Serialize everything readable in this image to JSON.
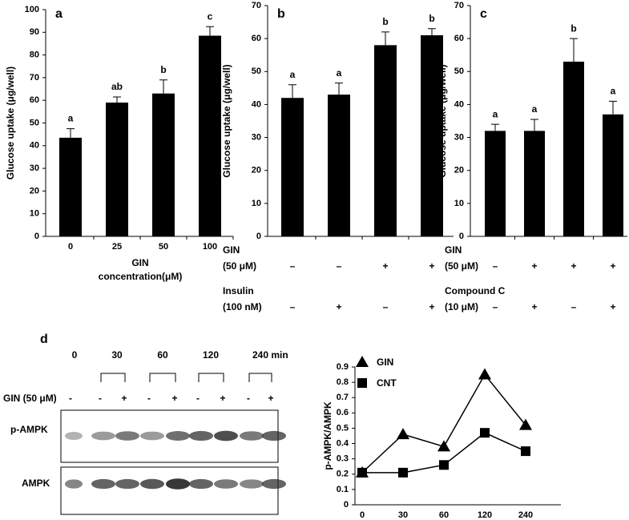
{
  "chart_data": [
    {
      "type": "bar",
      "panel": "a",
      "ylabel": "Glucose uptake (μg/well)",
      "xlabel": [
        "GIN",
        "concentration(μM)"
      ],
      "categories": [
        "0",
        "25",
        "50",
        "100"
      ],
      "values": [
        43.5,
        59,
        63,
        88.5
      ],
      "errors": [
        4,
        2.5,
        6,
        4
      ],
      "annotations": [
        "a",
        "ab",
        "b",
        "c"
      ],
      "color": "#000000",
      "ylim": [
        0,
        100
      ],
      "yticks": [
        0,
        10,
        20,
        30,
        40,
        50,
        60,
        70,
        80,
        90,
        100
      ]
    },
    {
      "type": "bar",
      "panel": "b",
      "ylabel": "Glucose uptake (μg/well)",
      "values": [
        42,
        43,
        58,
        61
      ],
      "errors": [
        4,
        3.5,
        4,
        2
      ],
      "annotations": [
        "a",
        "a",
        "b",
        "b"
      ],
      "color": "#000000",
      "conditions": [
        {
          "label": [
            "GIN",
            "(50 μM)"
          ],
          "signs": [
            "–",
            "–",
            "+",
            "+"
          ]
        },
        {
          "label": [
            "Insulin",
            "(100 nM)"
          ],
          "signs": [
            "–",
            "+",
            "–",
            "+"
          ]
        }
      ],
      "ylim": [
        0,
        70
      ],
      "yticks": [
        0,
        10,
        20,
        30,
        40,
        50,
        60,
        70
      ]
    },
    {
      "type": "bar",
      "panel": "c",
      "ylabel": "Glucose uptake (μg/well)",
      "values": [
        32,
        32,
        53,
        37
      ],
      "errors": [
        2,
        3.5,
        7,
        4
      ],
      "annotations": [
        "a",
        "a",
        "b",
        "a"
      ],
      "color": "#000000",
      "conditions": [
        {
          "label": [
            "GIN",
            "(50 μM)"
          ],
          "signs": [
            "–",
            "+",
            "+",
            "+"
          ]
        },
        {
          "label": [
            "Compound C",
            "(10 μM)"
          ],
          "signs": [
            "–",
            "+",
            "–",
            "+"
          ]
        }
      ],
      "ylim": [
        0,
        70
      ],
      "yticks": [
        0,
        10,
        20,
        30,
        40,
        50,
        60,
        70
      ]
    },
    {
      "type": "line",
      "ylabel": "p-AMPK/AMPK",
      "categories": [
        "0",
        "30",
        "60",
        "120",
        "240"
      ],
      "series": [
        {
          "name": "GIN",
          "color": "#000000",
          "marker": "triangle",
          "values": [
            0.21,
            0.46,
            0.38,
            0.85,
            0.52
          ]
        },
        {
          "name": "CNT",
          "color": "#000000",
          "marker": "square",
          "values": [
            0.21,
            0.21,
            0.26,
            0.47,
            0.35
          ]
        }
      ],
      "ylim": [
        0,
        0.9
      ],
      "yticks": [
        0,
        0.1,
        0.2,
        0.3,
        0.4,
        0.5,
        0.6,
        0.7,
        0.8,
        0.9
      ]
    }
  ],
  "blot": {
    "panel": "d",
    "times": [
      "0",
      "30",
      "60",
      "120",
      "240 min"
    ],
    "treatment": "GIN (50 μM)",
    "signs": [
      "-",
      "-",
      "+",
      "-",
      "+",
      "-",
      "+",
      "-",
      "+"
    ],
    "rows": [
      "p-AMPK",
      "AMPK"
    ]
  }
}
